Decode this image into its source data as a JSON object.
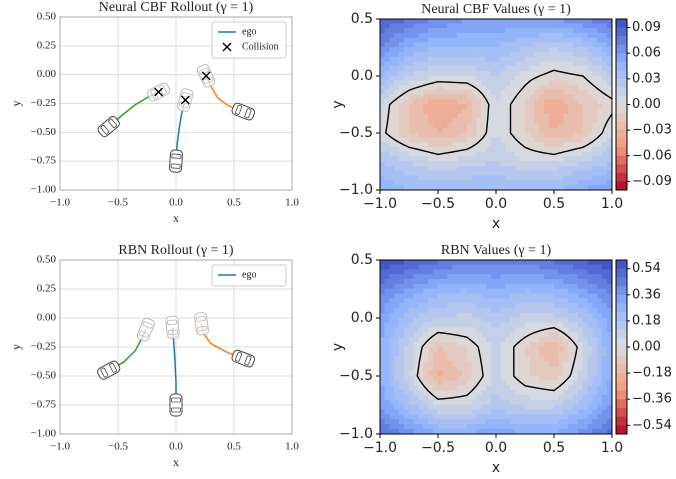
{
  "chart_data": [
    {
      "type": "line",
      "title": "Neural CBF Rollout (γ = 1)",
      "xlabel": "x",
      "ylabel": "y",
      "xlim": [
        -1,
        1
      ],
      "ylim": [
        -1,
        0.5
      ],
      "grid": true,
      "legend": "upper right",
      "xticks": [
        {
          "value": -1,
          "label": "−1.0"
        },
        {
          "value": -0.5,
          "label": "−0.5"
        },
        {
          "value": 0,
          "label": "0.0"
        },
        {
          "value": 0.5,
          "label": "0.5"
        },
        {
          "value": 1,
          "label": "1.0"
        }
      ],
      "yticks": [
        {
          "value": 0.5,
          "label": "0.50"
        },
        0.25,
        {
          "value": 0,
          "label": "0.00"
        },
        {
          "value": -0.25,
          "label": "−0.25"
        },
        {
          "value": -0.5,
          "label": "−0.50"
        },
        {
          "value": -0.75,
          "label": "−0.75"
        },
        {
          "value": -1,
          "label": "−1.00"
        }
      ],
      "series": [
        {
          "name": "ego",
          "color": "#1f77b4",
          "x": [
            0,
            0.01,
            0.03,
            0.05,
            0.08
          ],
          "y": [
            -0.75,
            -0.6,
            -0.45,
            -0.33,
            -0.22
          ]
        },
        {
          "color": "#2ca02c",
          "x": [
            -0.58,
            -0.45,
            -0.35,
            -0.25,
            -0.15
          ],
          "y": [
            -0.45,
            -0.34,
            -0.26,
            -0.2,
            -0.15
          ]
        },
        {
          "color": "#ff7f0e",
          "x": [
            0.58,
            0.45,
            0.36,
            0.3,
            0.26
          ],
          "y": [
            -0.32,
            -0.27,
            -0.2,
            -0.1,
            -0.01
          ]
        }
      ],
      "collisions": {
        "name": "Collision",
        "color": "#000000",
        "x": [
          -0.15,
          0.08,
          0.26
        ],
        "y": [
          -0.15,
          -0.22,
          -0.01
        ]
      }
    },
    {
      "type": "contour",
      "title": "Neural CBF Values (γ = 1)",
      "xlabel": "x",
      "ylabel": "y",
      "xlim": [
        -1,
        1
      ],
      "ylim": [
        -1,
        0.5
      ],
      "xticks": [
        {
          "value": -1,
          "label": "−1.0"
        },
        {
          "value": -0.5,
          "label": "−0.5"
        },
        {
          "value": 0,
          "label": "0.0"
        },
        {
          "value": 0.5,
          "label": "0.5"
        },
        {
          "value": 1,
          "label": "1.0"
        }
      ],
      "yticks": [
        {
          "value": 0.5,
          "label": "0.5"
        },
        {
          "value": 0,
          "label": "0.0"
        },
        {
          "value": -0.5,
          "label": "−0.5"
        },
        {
          "value": -1,
          "label": "−1.0"
        }
      ],
      "x": [
        -1,
        -0.75,
        -0.5,
        -0.25,
        0,
        0.25,
        0.5,
        0.75,
        1
      ],
      "y": [
        0.5,
        0.25,
        0,
        -0.25,
        -0.5,
        -0.75,
        -1
      ],
      "z": [
        [
          0.09,
          0.08,
          0.07,
          0.06,
          0.06,
          0.06,
          0.06,
          0.07,
          0.08
        ],
        [
          0.07,
          0.05,
          0.04,
          0.04,
          0.04,
          0.03,
          0.02,
          0.03,
          0.05
        ],
        [
          0.04,
          0.02,
          0.01,
          0.01,
          0.02,
          0.005,
          -0.005,
          0.0,
          0.02
        ],
        [
          0.01,
          -0.02,
          -0.04,
          -0.03,
          0.01,
          -0.01,
          -0.04,
          -0.02,
          -0.005
        ],
        [
          0.005,
          -0.02,
          -0.03,
          -0.02,
          0.01,
          -0.01,
          -0.03,
          -0.02,
          0.01
        ],
        [
          0.03,
          0.02,
          0.01,
          0.015,
          0.02,
          0.01,
          0.01,
          0.02,
          0.03
        ],
        [
          0.05,
          0.04,
          0.04,
          0.04,
          0.04,
          0.04,
          0.04,
          0.05,
          0.06
        ]
      ],
      "zlim": [
        -0.1,
        0.1
      ],
      "zticks": [
        0.09,
        0.06,
        0.03,
        {
          "value": 0,
          "label": "0.00"
        },
        {
          "value": -0.03,
          "label": "−0.03"
        },
        {
          "value": -0.06,
          "label": "−0.06"
        },
        {
          "value": -0.09,
          "label": "−0.09"
        }
      ],
      "colors": [
        "#3b4cc0",
        "#8db0fe",
        "#dddddd",
        "#f49a7b",
        "#b40426"
      ],
      "contour_color": "#000000"
    },
    {
      "type": "line",
      "title": "RBN Rollout (γ = 1)",
      "xlabel": "x",
      "ylabel": "y",
      "xlim": [
        -1,
        1
      ],
      "ylim": [
        -1,
        0.5
      ],
      "grid": true,
      "legend": "upper right",
      "xticks": [
        {
          "value": -1,
          "label": "−1.0"
        },
        {
          "value": -0.5,
          "label": "−0.5"
        },
        {
          "value": 0,
          "label": "0.0"
        },
        {
          "value": 0.5,
          "label": "0.5"
        },
        {
          "value": 1,
          "label": "1.0"
        }
      ],
      "yticks": [
        {
          "value": 0.5,
          "label": "0.50"
        },
        0.25,
        {
          "value": 0,
          "label": "0.00"
        },
        {
          "value": -0.25,
          "label": "−0.25"
        },
        {
          "value": -0.5,
          "label": "−0.50"
        },
        {
          "value": -0.75,
          "label": "−0.75"
        },
        {
          "value": -1,
          "label": "−1.00"
        }
      ],
      "series": [
        {
          "name": "ego",
          "color": "#1f77b4",
          "x": [
            0,
            0,
            -0.01,
            -0.02,
            -0.03
          ],
          "y": [
            -0.75,
            -0.55,
            -0.35,
            -0.2,
            -0.08
          ]
        },
        {
          "color": "#2ca02c",
          "x": [
            -0.58,
            -0.45,
            -0.35,
            -0.28,
            -0.26
          ],
          "y": [
            -0.45,
            -0.38,
            -0.28,
            -0.15,
            -0.1
          ]
        },
        {
          "color": "#ff7f0e",
          "x": [
            0.58,
            0.45,
            0.3,
            0.23,
            0.22
          ],
          "y": [
            -0.35,
            -0.3,
            -0.22,
            -0.12,
            -0.05
          ]
        }
      ]
    },
    {
      "type": "contour",
      "title": "RBN Values (γ = 1)",
      "xlabel": "x",
      "ylabel": "y",
      "xlim": [
        -1,
        1
      ],
      "ylim": [
        -1,
        0.5
      ],
      "xticks": [
        {
          "value": -1,
          "label": "−1.0"
        },
        {
          "value": -0.5,
          "label": "−0.5"
        },
        {
          "value": 0,
          "label": "0.0"
        },
        {
          "value": 0.5,
          "label": "0.5"
        },
        {
          "value": 1,
          "label": "1.0"
        }
      ],
      "yticks": [
        {
          "value": 0.5,
          "label": "0.5"
        },
        {
          "value": 0,
          "label": "0.0"
        },
        {
          "value": -0.5,
          "label": "−0.5"
        },
        {
          "value": -1,
          "label": "−1.0"
        }
      ],
      "x": [
        -1,
        -0.75,
        -0.5,
        -0.25,
        0,
        0.25,
        0.5,
        0.75,
        1
      ],
      "y": [
        0.5,
        0.25,
        0,
        -0.25,
        -0.5,
        -0.75,
        -1
      ],
      "z": [
        [
          0.6,
          0.55,
          0.5,
          0.45,
          0.45,
          0.45,
          0.5,
          0.55,
          0.6
        ],
        [
          0.45,
          0.35,
          0.28,
          0.25,
          0.3,
          0.25,
          0.28,
          0.35,
          0.45
        ],
        [
          0.35,
          0.2,
          0.12,
          0.1,
          0.15,
          0.1,
          0.1,
          0.18,
          0.33
        ],
        [
          0.3,
          0.1,
          -0.12,
          -0.05,
          0.08,
          -0.05,
          -0.2,
          0.05,
          0.3
        ],
        [
          0.3,
          0.08,
          -0.2,
          -0.1,
          0.08,
          -0.05,
          -0.1,
          0.08,
          0.3
        ],
        [
          0.35,
          0.2,
          0.05,
          0.05,
          0.15,
          0.1,
          0.1,
          0.2,
          0.38
        ],
        [
          0.5,
          0.4,
          0.3,
          0.3,
          0.35,
          0.3,
          0.3,
          0.4,
          0.5
        ]
      ],
      "zlim": [
        -0.6,
        0.6
      ],
      "zticks": [
        0.54,
        0.36,
        0.18,
        {
          "value": 0,
          "label": "0.00"
        },
        {
          "value": -0.18,
          "label": "−0.18"
        },
        {
          "value": -0.36,
          "label": "−0.36"
        },
        {
          "value": -0.54,
          "label": "−0.54"
        }
      ],
      "colors": [
        "#3b4cc0",
        "#8db0fe",
        "#dddddd",
        "#f49a7b",
        "#b40426"
      ],
      "contour_color": "#000000"
    }
  ]
}
